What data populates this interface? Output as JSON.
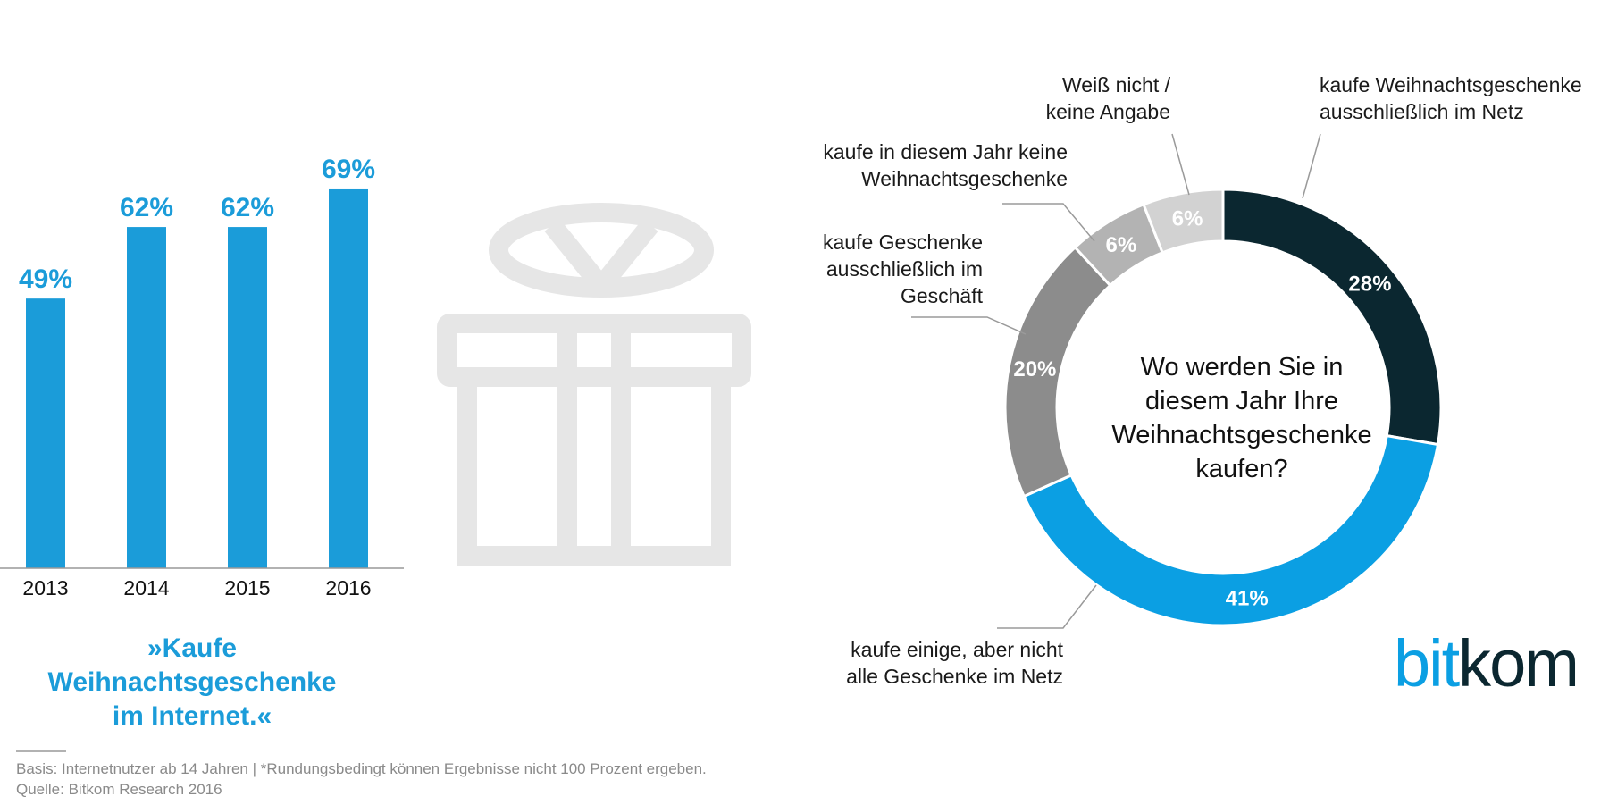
{
  "bar_chart": {
    "caption": "»Kaufe Weihnachtsgeschenke im Internet.«",
    "color": "#1b9cd9"
  },
  "donut_chart": {
    "question": "Wo werden Sie in diesem Jahr Ihre Weihnachtsgeschenke kaufen?"
  },
  "chart_data": [
    {
      "type": "bar",
      "categories": [
        "2013",
        "2014",
        "2015",
        "2016"
      ],
      "values": [
        49,
        62,
        62,
        69
      ],
      "value_labels": [
        "49%",
        "62%",
        "62%",
        "69%"
      ],
      "title": "»Kaufe Weihnachtsgeschenke im Internet.«",
      "xlabel": "",
      "ylabel": "",
      "ylim": [
        0,
        100
      ],
      "grid": false
    },
    {
      "type": "pie",
      "title": "Wo werden Sie in diesem Jahr Ihre Weihnachtsgeschenke kaufen?",
      "slices": [
        {
          "label": "kaufe Weihnachtsgeschenke ausschließlich im Netz",
          "value": 28,
          "value_label": "28%",
          "color": "#0b2730"
        },
        {
          "label": "kaufe einige, aber nicht alle Geschenke im Netz",
          "value": 41,
          "value_label": "41%",
          "color": "#0b9fe3"
        },
        {
          "label": "kaufe Geschenke ausschließlich im Geschäft",
          "value": 20,
          "value_label": "20%",
          "color": "#8c8c8c"
        },
        {
          "label": "kaufe in diesem Jahr keine Weihnachtsgeschenke",
          "value": 6,
          "value_label": "6%",
          "color": "#b3b3b3"
        },
        {
          "label": "Weiß nicht / keine Angabe",
          "value": 6,
          "value_label": "6%",
          "color": "#d2d2d2"
        }
      ]
    }
  ],
  "footer": {
    "basis": "Basis: Internetnutzer ab 14 Jahren | *Rundungsbedingt können Ergebnisse nicht 100 Prozent ergeben.",
    "source": "Quelle: Bitkom Research 2016"
  },
  "logo": {
    "part1": "bit",
    "part2": "kom",
    "color1": "#0b9fe3",
    "color2": "#0b2730"
  },
  "icon": "gift-icon"
}
